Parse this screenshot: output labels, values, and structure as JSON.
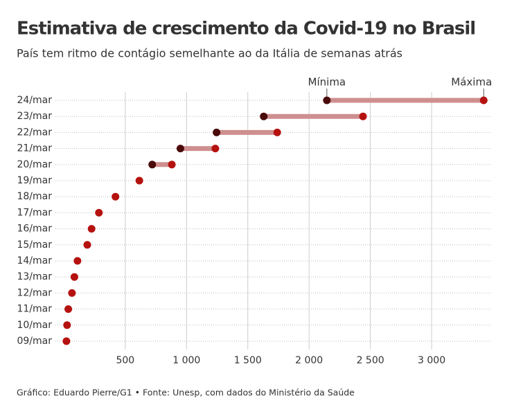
{
  "chart_data": {
    "type": "dumbbell",
    "title": "Estimativa de crescimento da Covid-19 no Brasil",
    "subtitle": "País tem ritmo de contágio semelhante ao da Itália de semanas atrás",
    "source": "Gráfico: Eduardo Pierre/G1 • Fonte: Unesp, com dados do Ministério da Saúde",
    "categories": [
      "24/mar",
      "23/mar",
      "22/mar",
      "21/mar",
      "20/mar",
      "19/mar",
      "18/mar",
      "17/mar",
      "16/mar",
      "15/mar",
      "14/mar",
      "13/mar",
      "12/mar",
      "11/mar",
      "10/mar",
      "09/mar"
    ],
    "series": [
      {
        "name": "Mínima",
        "color": "#4a0a0a",
        "values": [
          2145,
          1630,
          1245,
          950,
          720,
          null,
          null,
          null,
          null,
          null,
          null,
          null,
          null,
          null,
          null,
          null
        ]
      },
      {
        "name": "Máxima",
        "color": "#b5120f",
        "values": [
          3425,
          2440,
          1740,
          1235,
          880,
          615,
          420,
          285,
          225,
          190,
          110,
          85,
          65,
          35,
          25,
          20
        ]
      }
    ],
    "range_color": "#cf8f8f",
    "xlim": [
      -70,
      3480
    ],
    "xticks": [
      500,
      {
        "value": 1000,
        "label": "1 000"
      },
      {
        "value": 1500,
        "label": "1 500"
      },
      {
        "value": 2000,
        "label": "2 000"
      },
      {
        "value": 2500,
        "label": "2 500"
      },
      {
        "value": 3000,
        "label": "3 000"
      }
    ],
    "grid": true
  }
}
